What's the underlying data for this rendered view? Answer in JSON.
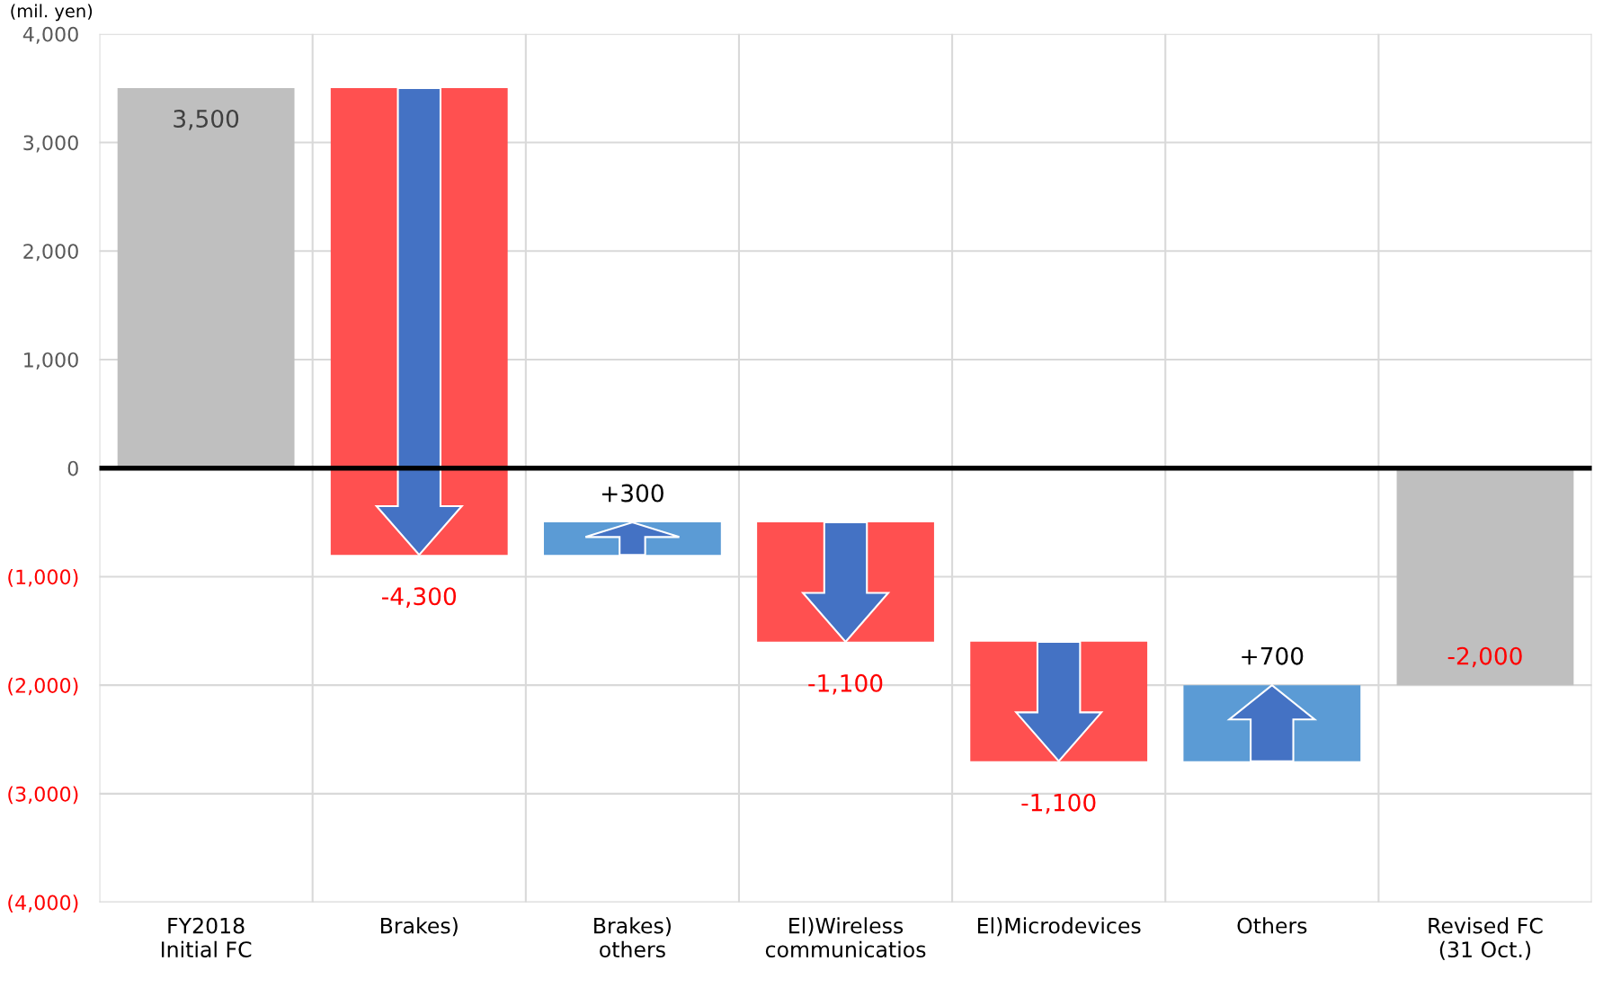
{
  "chart_data": {
    "type": "bar",
    "categories": [
      "FY2018\nInitial FC",
      "Brakes)",
      "Brakes)\nothers",
      "El)Wireless\ncommunicatios",
      "El)Microdevices",
      "Others",
      "Revised FC\n(31 Oct.)"
    ],
    "values": [
      3500,
      -4300,
      300,
      -1100,
      -1100,
      700,
      -2000
    ],
    "base": [
      0,
      3500,
      -800,
      -500,
      -1600,
      -2700,
      0
    ],
    "colors": [
      "#bfbfbf",
      "#ff5050",
      "#5b9bd5",
      "#ff5050",
      "#ff5050",
      "#5b9bd5",
      "#bfbfbf"
    ],
    "value_labels": [
      "3,500",
      "-4,300",
      "+300",
      "-1,100",
      "-1,100",
      "+700",
      "-2,000"
    ],
    "ylim": [
      -4000,
      4000
    ],
    "yticks": [
      {
        "value": -4000,
        "label": "(4,000)"
      },
      {
        "value": -3000,
        "label": "(3,000)"
      },
      {
        "value": -2000,
        "label": "(2,000)"
      },
      {
        "value": -1000,
        "label": "(1,000)"
      },
      0,
      {
        "value": 1000,
        "label": "1,000"
      },
      {
        "value": 2000,
        "label": "2,000"
      },
      {
        "value": 3000,
        "label": "3,000"
      },
      {
        "value": 4000,
        "label": "4,000"
      }
    ],
    "ref_lines": [
      {
        "axis": "y",
        "value": 0,
        "color": "#000000"
      }
    ],
    "annotations": [
      "(mil. yen)"
    ],
    "grid": true
  }
}
